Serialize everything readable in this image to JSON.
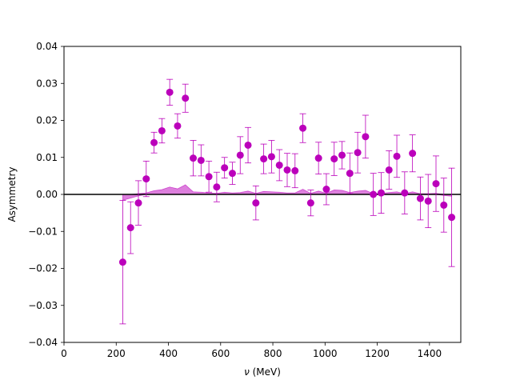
{
  "chart_data": {
    "type": "scatter",
    "title": "",
    "xlabel_symbol": "ν",
    "xlabel_unit": " (MeV)",
    "ylabel": "Asymmetry",
    "xlim": [
      0,
      1520
    ],
    "ylim": [
      -0.04,
      0.04
    ],
    "xticks": [
      0,
      200,
      400,
      600,
      800,
      1000,
      1200,
      1400
    ],
    "xtick_labels": [
      "0",
      "200",
      "400",
      "600",
      "800",
      "1000",
      "1200",
      "1400"
    ],
    "yticks": [
      -0.04,
      -0.03,
      -0.02,
      -0.01,
      0.0,
      0.01,
      0.02,
      0.03,
      0.04
    ],
    "ytick_labels": [
      "−0.04",
      "−0.03",
      "−0.02",
      "−0.01",
      "0.00",
      "0.01",
      "0.02",
      "0.03",
      "0.04"
    ],
    "grid": false,
    "zero_line": true,
    "series": [
      {
        "color": "#bb00bb",
        "x": [
          225,
          255,
          285,
          315,
          345,
          375,
          405,
          435,
          465,
          495,
          525,
          555,
          585,
          615,
          645,
          675,
          705,
          735,
          765,
          795,
          825,
          855,
          885,
          915,
          945,
          975,
          1005,
          1035,
          1065,
          1095,
          1125,
          1155,
          1185,
          1215,
          1245,
          1275,
          1305,
          1335,
          1365,
          1395,
          1425,
          1455,
          1485
        ],
        "y": [
          -0.0183,
          -0.009,
          -0.0023,
          0.0042,
          0.014,
          0.0172,
          0.0276,
          0.0185,
          0.026,
          0.0098,
          0.0092,
          0.0048,
          0.002,
          0.0072,
          0.0057,
          0.0106,
          0.0133,
          -0.0023,
          0.0096,
          0.0102,
          0.0079,
          0.0066,
          0.0064,
          0.0179,
          -0.0023,
          0.0098,
          0.0014,
          0.0096,
          0.0106,
          0.0057,
          0.0113,
          0.0156,
          0.0,
          0.0004,
          0.0066,
          0.0103,
          0.0004,
          0.0111,
          -0.0011,
          -0.0018,
          0.0029,
          -0.0029,
          -0.0062
        ],
        "err": [
          0.0167,
          0.007,
          0.006,
          0.0048,
          0.0028,
          0.0033,
          0.0035,
          0.0033,
          0.0038,
          0.0048,
          0.0042,
          0.0042,
          0.004,
          0.0028,
          0.003,
          0.005,
          0.0048,
          0.0046,
          0.004,
          0.0044,
          0.0042,
          0.0045,
          0.0046,
          0.0039,
          0.0035,
          0.0043,
          0.0042,
          0.0045,
          0.0037,
          0.0055,
          0.0055,
          0.0058,
          0.0057,
          0.0055,
          0.0052,
          0.0057,
          0.0057,
          0.005,
          0.0058,
          0.0072,
          0.0075,
          0.0073,
          0.0133
        ]
      }
    ],
    "band": {
      "color": "#bb00bb",
      "x": [
        225,
        255,
        285,
        315,
        345,
        375,
        405,
        435,
        465,
        495,
        525,
        555,
        585,
        615,
        645,
        675,
        705,
        735,
        765,
        795,
        825,
        855,
        885,
        915,
        945,
        975,
        1005,
        1035,
        1065,
        1095,
        1125,
        1155,
        1185,
        1215,
        1245,
        1275,
        1305,
        1335,
        1365,
        1395,
        1425,
        1455,
        1485
      ],
      "lo": [
        -0.0016,
        -0.001,
        -0.0004,
        0.0,
        0.0,
        0.0,
        0.0,
        0.0,
        0.0,
        0.0,
        0.0,
        0.0,
        0.0,
        0.0,
        0.0,
        0.0,
        0.0,
        0.0,
        0.0,
        0.0,
        0.0,
        0.0,
        0.0,
        0.0,
        0.0,
        0.0,
        0.0,
        0.0,
        0.0,
        0.0,
        0.0,
        0.0,
        0.0,
        0.0,
        0.0,
        0.0,
        0.0,
        0.0,
        0.0,
        0.0,
        0.0,
        -0.0003,
        -0.0005
      ],
      "hi": [
        0.0,
        0.0,
        0.0002,
        0.0004,
        0.001,
        0.0013,
        0.002,
        0.0015,
        0.0026,
        0.0007,
        0.0006,
        0.0004,
        0.0003,
        0.0006,
        0.0004,
        0.0005,
        0.0009,
        0.0003,
        0.0008,
        0.0007,
        0.0006,
        0.0004,
        0.0004,
        0.0014,
        0.0003,
        0.0009,
        0.0003,
        0.0012,
        0.0011,
        0.0005,
        0.0009,
        0.0011,
        0.0002,
        0.0003,
        0.0005,
        0.0007,
        0.0002,
        0.0007,
        0.0002,
        0.0002,
        0.0003,
        0.0,
        0.0
      ]
    }
  }
}
